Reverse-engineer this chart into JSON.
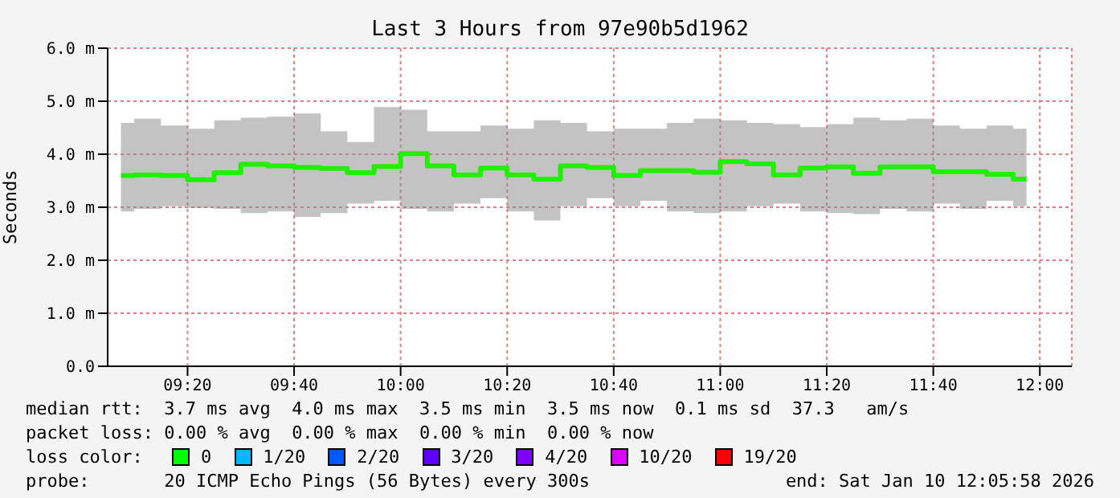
{
  "chart_data": {
    "type": "step",
    "title": "Last 3 Hours from 97e90b5d1962",
    "ylabel": "Seconds",
    "x": [
      9.125,
      9.208333,
      9.291667,
      9.375,
      9.458333,
      9.541667,
      9.625,
      9.708333,
      9.791667,
      9.875,
      9.958333,
      10.041667,
      10.125,
      10.208333,
      10.291667,
      10.375,
      10.458333,
      10.541667,
      10.625,
      10.708333,
      10.791667,
      10.875,
      10.958333,
      11.041667,
      11.125,
      11.208333,
      11.291667,
      11.375,
      11.458333,
      11.541667,
      11.625,
      11.708333,
      11.791667,
      11.875,
      11.958333
    ],
    "series": [
      {
        "color": "#20f000",
        "values": [
          3.6,
          3.61,
          3.6,
          3.52,
          3.65,
          3.81,
          3.78,
          3.75,
          3.73,
          3.65,
          3.77,
          4.01,
          3.78,
          3.61,
          3.74,
          3.61,
          3.53,
          3.78,
          3.75,
          3.6,
          3.69,
          3.69,
          3.66,
          3.86,
          3.82,
          3.61,
          3.74,
          3.76,
          3.64,
          3.76,
          3.76,
          3.67,
          3.67,
          3.62,
          3.53
        ],
        "lower": [
          2.92,
          2.97,
          3.02,
          2.99,
          2.97,
          2.89,
          2.92,
          2.82,
          2.89,
          3.07,
          3.12,
          2.97,
          2.92,
          3.07,
          3.17,
          2.92,
          2.75,
          3.02,
          3.17,
          3.02,
          3.12,
          2.92,
          2.89,
          2.92,
          3.02,
          3.07,
          2.92,
          2.89,
          2.87,
          2.97,
          2.92,
          3.07,
          2.97,
          3.12,
          3.02
        ],
        "upper": [
          4.59,
          4.67,
          4.54,
          4.48,
          4.64,
          4.69,
          4.71,
          4.77,
          4.43,
          4.23,
          4.89,
          4.84,
          4.43,
          4.43,
          4.54,
          4.48,
          4.64,
          4.59,
          4.43,
          4.48,
          4.48,
          4.59,
          4.67,
          4.64,
          4.59,
          4.57,
          4.51,
          4.57,
          4.69,
          4.64,
          4.67,
          4.54,
          4.48,
          4.54,
          4.48
        ]
      }
    ],
    "xlim": [
      9.083333,
      12.1
    ],
    "xticks": [
      {
        "value": 9.333333,
        "label": "09:20"
      },
      {
        "value": 9.666667,
        "label": "09:40"
      },
      {
        "value": 10,
        "label": "10:00"
      },
      {
        "value": 10.333333,
        "label": "10:20"
      },
      {
        "value": 10.666667,
        "label": "10:40"
      },
      {
        "value": 11,
        "label": "11:00"
      },
      {
        "value": 11.333333,
        "label": "11:20"
      },
      {
        "value": 11.666667,
        "label": "11:40"
      },
      {
        "value": 12,
        "label": "12:00"
      }
    ],
    "ylim": [
      0,
      6
    ],
    "yticks": [
      {
        "value": 0,
        "label": "0.0"
      },
      {
        "value": 1,
        "label": "1.0 m"
      },
      {
        "value": 2,
        "label": "2.0 m"
      },
      {
        "value": 3,
        "label": "3.0 m"
      },
      {
        "value": 4,
        "label": "4.0 m"
      },
      {
        "value": 5,
        "label": "5.0 m"
      },
      {
        "value": 6,
        "label": "6.0 m"
      }
    ],
    "grid": true,
    "annotations": [
      "median rtt:  3.7 ms avg  4.0 ms max  3.5 ms min  3.5 ms now  0.1 ms sd  37.3   am/s",
      "packet loss: 0.00 % avg  0.00 % max  0.00 % min  0.00 % now",
      "loss color:",
      "0",
      "1/20",
      "2/20",
      "3/20",
      "4/20",
      "10/20",
      "19/20",
      "probe:       20 ICMP Echo Pings (56 Bytes) every 300s",
      "end: Sat Jan 10 12:05:58 2026"
    ]
  }
}
